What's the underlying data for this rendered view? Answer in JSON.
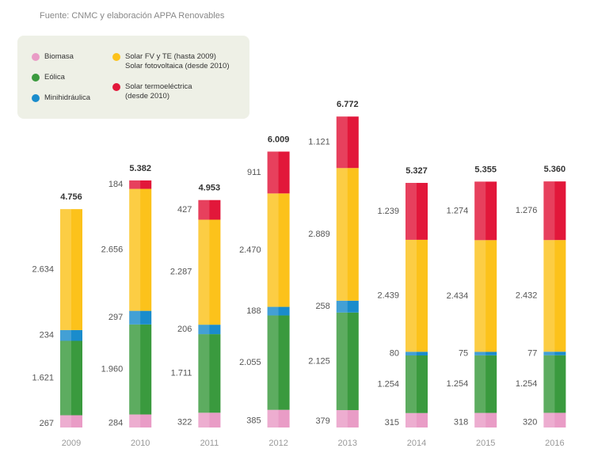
{
  "source": "Fuente: CNMC y elaboración APPA Renovables",
  "chart_data": {
    "type": "stacked-bar",
    "categories": [
      "2009",
      "2010",
      "2011",
      "2012",
      "2013",
      "2014",
      "2015",
      "2016"
    ],
    "series": [
      {
        "name": "Biomasa",
        "color": "#e99cc6",
        "values": [
          267,
          284,
          322,
          385,
          379,
          315,
          318,
          320
        ],
        "value_labels": [
          "267",
          "284",
          "322",
          "385",
          "379",
          "315",
          "318",
          "320"
        ]
      },
      {
        "name": "Eólica",
        "color": "#3a9a3e",
        "values": [
          1621,
          1960,
          1711,
          2055,
          2125,
          1254,
          1254,
          1254
        ],
        "value_labels": [
          "1.621",
          "1.960",
          "1.711",
          "2.055",
          "2.125",
          "1.254",
          "1.254",
          "1.254"
        ]
      },
      {
        "name": "Minihidráulica",
        "color": "#1a8ccc",
        "values": [
          234,
          297,
          206,
          188,
          258,
          80,
          75,
          77
        ],
        "value_labels": [
          "234",
          "297",
          "206",
          "188",
          "258",
          "80",
          "75",
          "77"
        ]
      },
      {
        "name": "Solar FV y TE (hasta 2009)\nSolar fotovoltaica (desde 2010)",
        "color": "#fcc21b",
        "values": [
          2634,
          2656,
          2287,
          2470,
          2889,
          2439,
          2434,
          2432
        ],
        "value_labels": [
          "2.634",
          "2.656",
          "2.287",
          "2.470",
          "2.889",
          "2.439",
          "2.434",
          "2.432"
        ]
      },
      {
        "name": "Solar termoeléctrica\n(desde 2010)",
        "color": "#e2173a",
        "values": [
          null,
          184,
          427,
          911,
          1121,
          1239,
          1274,
          1276
        ],
        "value_labels": [
          null,
          "184",
          "427",
          "911",
          "1.121",
          "1.239",
          "1.274",
          "1.276"
        ]
      }
    ],
    "totals": {
      "values": [
        4756,
        5382,
        4953,
        6009,
        6772,
        5327,
        5355,
        5360
      ],
      "value_labels": [
        "4.756",
        "5.382",
        "4.953",
        "6.009",
        "6.772",
        "5.327",
        "5.355",
        "5.360"
      ]
    }
  }
}
